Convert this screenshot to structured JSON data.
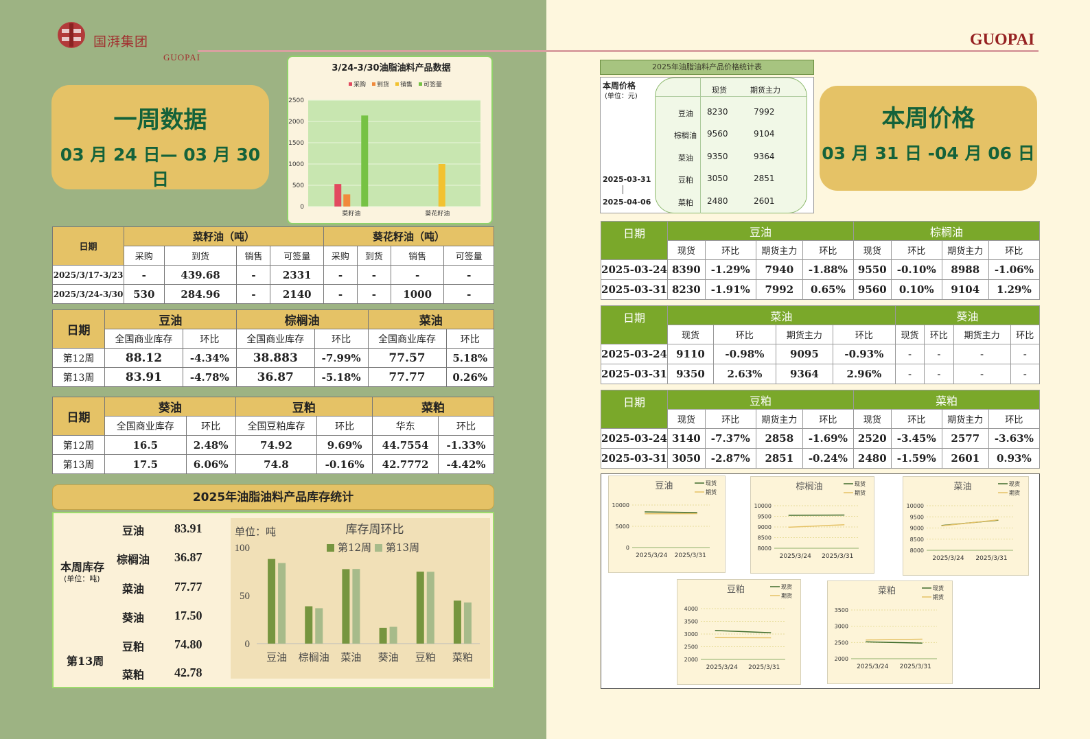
{
  "brand": {
    "name_cn": "国湃集团",
    "name_en": "GUOPAI",
    "right_en": "GUOPAI"
  },
  "week_card": {
    "title": "一周数据",
    "dates": "03 月 24 日— 03 月 30 日"
  },
  "price_card": {
    "title": "本周价格",
    "dates": "03 月 31 日 -04 月 06 日"
  },
  "chart1": {
    "title": "3/24-3/30油脂油料产品数据",
    "legend": [
      "采购",
      "到货",
      "销售",
      "可签量"
    ],
    "colors": [
      "#e24a5f",
      "#f08a3c",
      "#f2c230",
      "#76c244"
    ],
    "yticks": [
      "2500",
      "2000",
      "1500",
      "1000",
      "500",
      "0"
    ],
    "ymax": 2500,
    "categories": [
      "菜籽油",
      "葵花籽油"
    ],
    "series": [
      {
        "name": "采购",
        "values": [
          530,
          0
        ]
      },
      {
        "name": "到货",
        "values": [
          284.96,
          0
        ]
      },
      {
        "name": "销售",
        "values": [
          0,
          1000
        ]
      },
      {
        "name": "可签量",
        "values": [
          2140,
          0
        ]
      }
    ]
  },
  "trade_table": {
    "date_label": "日期",
    "group1": "菜籽油（吨）",
    "group2": "葵花籽油（吨）",
    "subs": [
      "采购",
      "到货",
      "销售",
      "可签量",
      "采购",
      "到货",
      "销售",
      "可签量"
    ],
    "rows": [
      {
        "date": "2025/3/17-3/23",
        "cells": [
          "-",
          "439.68",
          "-",
          "2331",
          "-",
          "-",
          "-",
          "-"
        ]
      },
      {
        "date": "2025/3/24-3/30",
        "cells": [
          "530",
          "284.96",
          "-",
          "2140",
          "-",
          "-",
          "1000",
          "-"
        ]
      }
    ]
  },
  "stock_table1": {
    "date_label": "日期",
    "groups": [
      "豆油",
      "棕榈油",
      "菜油"
    ],
    "subs": [
      "全国商业库存",
      "环比",
      "全国商业库存",
      "环比",
      "全国商业库存",
      "环比"
    ],
    "rows": [
      {
        "date": "第12周",
        "cells": [
          "88.12",
          "-4.34%",
          "38.883",
          "-7.99%",
          "77.57",
          "5.18%"
        ]
      },
      {
        "date": "第13周",
        "cells": [
          "83.91",
          "-4.78%",
          "36.87",
          "-5.18%",
          "77.77",
          "0.26%"
        ]
      }
    ]
  },
  "stock_table2": {
    "date_label": "日期",
    "groups": [
      "葵油",
      "豆粕",
      "菜粕"
    ],
    "subs": [
      "全国商业库存",
      "环比",
      "全国豆粕库存",
      "环比",
      "华东",
      "环比"
    ],
    "rows": [
      {
        "date": "第12周",
        "cells": [
          "16.5",
          "2.48%",
          "74.92",
          "9.69%",
          "44.7554",
          "-1.33%"
        ]
      },
      {
        "date": "第13周",
        "cells": [
          "17.5",
          "6.06%",
          "74.8",
          "-0.16%",
          "42.7772",
          "-4.42%"
        ]
      }
    ]
  },
  "inventory": {
    "title": "2025年油脂油料产品库存统计",
    "side_label": "本周库存",
    "side_unit": "(单位：吨)",
    "week_label": "第13周",
    "items": [
      {
        "name": "豆油",
        "value": "83.91"
      },
      {
        "name": "棕榈油",
        "value": "36.87"
      },
      {
        "name": "菜油",
        "value": "77.77"
      },
      {
        "name": "葵油",
        "value": "17.50"
      },
      {
        "name": "豆粕",
        "value": "74.80"
      },
      {
        "name": "菜粕",
        "value": "42.78"
      }
    ]
  },
  "chart_data": {
    "type": "bar",
    "title": "库存周环比",
    "unit": "单位：吨",
    "categories": [
      "豆油",
      "棕榈油",
      "菜油",
      "葵油",
      "豆粕",
      "菜粕"
    ],
    "series": [
      {
        "name": "第12周",
        "values": [
          88.12,
          38.883,
          77.57,
          16.5,
          74.92,
          44.7554
        ],
        "color": "#76953f"
      },
      {
        "name": "第13周",
        "values": [
          83.91,
          36.87,
          77.77,
          17.5,
          74.8,
          42.7772
        ],
        "color": "#a7bb8a"
      }
    ],
    "yticks": [
      "100",
      "50",
      "0"
    ],
    "ylim": [
      0,
      100
    ]
  },
  "price_stats": {
    "title": "2025年油脂油料产品价格统计表",
    "label": "本周价格",
    "unit": "(单位：元)",
    "date_from": "2025-03-31",
    "date_to": "2025-04-06",
    "cols": [
      "现货",
      "期货主力"
    ],
    "rows": [
      {
        "name": "豆油",
        "spot": "8230",
        "futures": "7992"
      },
      {
        "name": "棕榈油",
        "spot": "9560",
        "futures": "9104"
      },
      {
        "name": "菜油",
        "spot": "9350",
        "futures": "9364"
      },
      {
        "name": "豆粕",
        "spot": "3050",
        "futures": "2851"
      },
      {
        "name": "菜粕",
        "spot": "2480",
        "futures": "2601"
      }
    ]
  },
  "price_tables": [
    {
      "groups": [
        "豆油",
        "棕榈油"
      ],
      "rows": [
        {
          "date": "2025-03-24",
          "cells": [
            "8390",
            "-1.29%",
            "7940",
            "-1.88%",
            "9550",
            "-0.10%",
            "8988",
            "-1.06%"
          ]
        },
        {
          "date": "2025-03-31",
          "cells": [
            "8230",
            "-1.91%",
            "7992",
            "0.65%",
            "9560",
            "0.10%",
            "9104",
            "1.29%"
          ]
        }
      ]
    },
    {
      "groups": [
        "菜油",
        "葵油"
      ],
      "rows": [
        {
          "date": "2025-03-24",
          "cells": [
            "9110",
            "-0.98%",
            "9095",
            "-0.93%",
            "-",
            "-",
            "-",
            "-"
          ]
        },
        {
          "date": "2025-03-31",
          "cells": [
            "9350",
            "2.63%",
            "9364",
            "2.96%",
            "-",
            "-",
            "-",
            "-"
          ]
        }
      ]
    },
    {
      "groups": [
        "豆粕",
        "菜粕"
      ],
      "rows": [
        {
          "date": "2025-03-24",
          "cells": [
            "3140",
            "-7.37%",
            "2858",
            "-1.69%",
            "2520",
            "-3.45%",
            "2577",
            "-3.63%"
          ]
        },
        {
          "date": "2025-03-31",
          "cells": [
            "3050",
            "-2.87%",
            "2851",
            "-0.24%",
            "2480",
            "-1.59%",
            "2601",
            "0.93%"
          ]
        }
      ]
    }
  ],
  "price_table_labels": {
    "date": "日期",
    "subs": [
      "现货",
      "环比",
      "期货主力",
      "环比",
      "现货",
      "环比",
      "期货主力",
      "环比"
    ]
  },
  "mini_charts": [
    {
      "title": "豆油",
      "x": [
        "2025/3/24",
        "2025/3/31"
      ],
      "spot": [
        8390,
        8230
      ],
      "futures": [
        7940,
        7992
      ],
      "ymin": 0,
      "ymax": 10000,
      "yticks": [
        "10000",
        "5000",
        "0"
      ]
    },
    {
      "title": "棕榈油",
      "x": [
        "2025/3/24",
        "2025/3/31"
      ],
      "spot": [
        9550,
        9560
      ],
      "futures": [
        8988,
        9104
      ],
      "ymin": 8000,
      "ymax": 10000,
      "yticks": [
        "10000",
        "9500",
        "9000",
        "8500",
        "8000"
      ]
    },
    {
      "title": "菜油",
      "x": [
        "2025/3/24",
        "2025/3/31"
      ],
      "spot": [
        9110,
        9350
      ],
      "futures": [
        9095,
        9364
      ],
      "ymin": 8000,
      "ymax": 10000,
      "yticks": [
        "10000",
        "9500",
        "9000",
        "8500",
        "8000"
      ]
    },
    {
      "title": "豆粕",
      "x": [
        "2025/3/24",
        "2025/3/31"
      ],
      "spot": [
        3140,
        3050
      ],
      "futures": [
        2858,
        2851
      ],
      "ymin": 2000,
      "ymax": 4000,
      "yticks": [
        "4000",
        "3500",
        "3000",
        "2500",
        "2000"
      ]
    },
    {
      "title": "菜粕",
      "x": [
        "2025/3/24",
        "2025/3/31"
      ],
      "spot": [
        2520,
        2480
      ],
      "futures": [
        2577,
        2601
      ],
      "ymin": 2000,
      "ymax": 3500,
      "yticks": [
        "3500",
        "3000",
        "2500",
        "2000"
      ]
    }
  ],
  "mini_legend": [
    "现货",
    "期货"
  ]
}
